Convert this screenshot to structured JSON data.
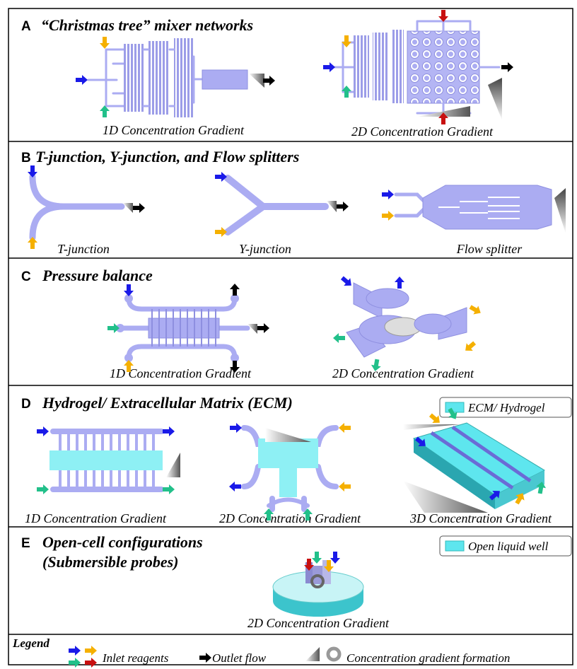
{
  "panels": [
    {
      "letter": "A",
      "title": "“Christmas tree” mixer networks",
      "captions": [
        "1D Concentration Gradient",
        "2D Concentration Gradient"
      ]
    },
    {
      "letter": "B",
      "title": "T-junction, Y-junction, and Flow splitters",
      "captions": [
        "T-junction",
        "Y-junction",
        "Flow splitter"
      ]
    },
    {
      "letter": "C",
      "title": "Pressure balance",
      "captions": [
        "1D Concentration Gradient",
        "2D Concentration Gradient"
      ]
    },
    {
      "letter": "D",
      "title": "Hydrogel/ Extracellular Matrix (ECM)",
      "key": "ECM/ Hydrogel",
      "captions": [
        "1D Concentration Gradient",
        "2D Concentration Gradient",
        "3D Concentration Gradient"
      ]
    },
    {
      "letter": "E",
      "title": "Open-cell configurations",
      "subtitle": "(Submersible probes)",
      "key": "Open liquid well",
      "captions": [
        "2D Concentration Gradient"
      ]
    }
  ],
  "legend": {
    "title": "Legend",
    "items": [
      "Inlet reagents",
      "Outlet flow",
      "Concentration gradient formation"
    ]
  }
}
